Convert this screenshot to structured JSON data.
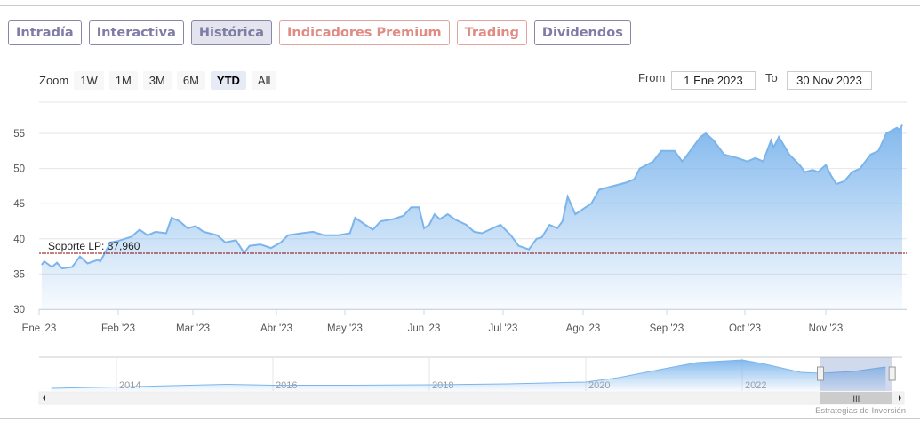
{
  "tabs": [
    {
      "label": "Intradía",
      "style": "normal"
    },
    {
      "label": "Interactiva",
      "style": "normal"
    },
    {
      "label": "Histórica",
      "style": "active"
    },
    {
      "label": "Indicadores Premium",
      "style": "red"
    },
    {
      "label": "Trading",
      "style": "red"
    },
    {
      "label": "Dividendos",
      "style": "normal"
    }
  ],
  "zoom": {
    "label": "Zoom",
    "buttons": [
      "1W",
      "1M",
      "3M",
      "6M",
      "YTD",
      "All"
    ],
    "selected": "YTD"
  },
  "range": {
    "from_label": "From",
    "from": "1 Ene 2023",
    "to_label": "To",
    "to": "30 Nov 2023"
  },
  "credit": "Estrategias de Inversión",
  "colors": {
    "line": "#7cb5ec",
    "support": "#8b0000",
    "tab_text": "#7f7ca6",
    "tab_red": "#e08b83"
  },
  "chart_data": {
    "type": "area",
    "ylim": [
      30,
      60
    ],
    "yticks": [
      30,
      35,
      40,
      45,
      50,
      55
    ],
    "xticks": [
      {
        "label": "Ene '23",
        "date": "2023-01-01"
      },
      {
        "label": "Feb '23",
        "date": "2023-02-01"
      },
      {
        "label": "Mar '23",
        "date": "2023-03-01"
      },
      {
        "label": "Abr '23",
        "date": "2023-04-01"
      },
      {
        "label": "May '23",
        "date": "2023-05-01"
      },
      {
        "label": "Jun '23",
        "date": "2023-06-01"
      },
      {
        "label": "Jul '23",
        "date": "2023-07-01"
      },
      {
        "label": "Ago '23",
        "date": "2023-08-01"
      },
      {
        "label": "Sep '23",
        "date": "2023-09-01"
      },
      {
        "label": "Oct '23",
        "date": "2023-10-01"
      },
      {
        "label": "Nov '23",
        "date": "2023-11-01"
      }
    ],
    "grid": true,
    "support": {
      "label": "Soporte LP: 37,960",
      "value": 37.96
    },
    "series": [
      {
        "points": [
          [
            "2023-01-02",
            36.3
          ],
          [
            "2023-01-03",
            36.8
          ],
          [
            "2023-01-06",
            36.0
          ],
          [
            "2023-01-08",
            36.6
          ],
          [
            "2023-01-10",
            35.8
          ],
          [
            "2023-01-14",
            36.0
          ],
          [
            "2023-01-17",
            37.5
          ],
          [
            "2023-01-20",
            36.5
          ],
          [
            "2023-01-24",
            37.0
          ],
          [
            "2023-01-25",
            36.8
          ],
          [
            "2023-01-29",
            39.5
          ],
          [
            "2023-02-01",
            39.7
          ],
          [
            "2023-02-06",
            40.3
          ],
          [
            "2023-02-09",
            41.3
          ],
          [
            "2023-02-12",
            40.5
          ],
          [
            "2023-02-15",
            41.0
          ],
          [
            "2023-02-19",
            40.8
          ],
          [
            "2023-02-21",
            43.0
          ],
          [
            "2023-02-24",
            42.5
          ],
          [
            "2023-02-27",
            41.5
          ],
          [
            "2023-03-02",
            41.8
          ],
          [
            "2023-03-05",
            41.0
          ],
          [
            "2023-03-10",
            40.5
          ],
          [
            "2023-03-13",
            39.5
          ],
          [
            "2023-03-17",
            39.8
          ],
          [
            "2023-03-20",
            38.0
          ],
          [
            "2023-03-22",
            39.0
          ],
          [
            "2023-03-26",
            39.2
          ],
          [
            "2023-03-30",
            38.7
          ],
          [
            "2023-04-03",
            39.5
          ],
          [
            "2023-04-06",
            40.5
          ],
          [
            "2023-04-12",
            40.8
          ],
          [
            "2023-04-17",
            41.0
          ],
          [
            "2023-04-22",
            40.5
          ],
          [
            "2023-04-28",
            40.5
          ],
          [
            "2023-05-03",
            40.8
          ],
          [
            "2023-05-05",
            43.0
          ],
          [
            "2023-05-09",
            42.0
          ],
          [
            "2023-05-12",
            41.3
          ],
          [
            "2023-05-15",
            42.5
          ],
          [
            "2023-05-20",
            42.8
          ],
          [
            "2023-05-24",
            43.3
          ],
          [
            "2023-05-27",
            44.5
          ],
          [
            "2023-05-30",
            44.5
          ],
          [
            "2023-06-01",
            41.5
          ],
          [
            "2023-06-03",
            42.0
          ],
          [
            "2023-06-05",
            43.5
          ],
          [
            "2023-06-07",
            42.8
          ],
          [
            "2023-06-10",
            43.5
          ],
          [
            "2023-06-13",
            42.7
          ],
          [
            "2023-06-17",
            42.0
          ],
          [
            "2023-06-20",
            41.0
          ],
          [
            "2023-06-23",
            40.8
          ],
          [
            "2023-06-27",
            41.5
          ],
          [
            "2023-06-30",
            42.0
          ],
          [
            "2023-07-04",
            40.5
          ],
          [
            "2023-07-07",
            39.0
          ],
          [
            "2023-07-11",
            38.5
          ],
          [
            "2023-07-14",
            40.0
          ],
          [
            "2023-07-16",
            40.2
          ],
          [
            "2023-07-19",
            42.0
          ],
          [
            "2023-07-22",
            41.5
          ],
          [
            "2023-07-24",
            42.5
          ],
          [
            "2023-07-26",
            46.0
          ],
          [
            "2023-07-29",
            43.5
          ],
          [
            "2023-08-02",
            44.5
          ],
          [
            "2023-08-04",
            45.0
          ],
          [
            "2023-08-07",
            47.0
          ],
          [
            "2023-08-12",
            47.5
          ],
          [
            "2023-08-17",
            48.0
          ],
          [
            "2023-08-20",
            48.5
          ],
          [
            "2023-08-22",
            50.0
          ],
          [
            "2023-08-27",
            51.0
          ],
          [
            "2023-08-30",
            52.5
          ],
          [
            "2023-09-04",
            52.5
          ],
          [
            "2023-09-07",
            51.0
          ],
          [
            "2023-09-09",
            52.0
          ],
          [
            "2023-09-14",
            54.5
          ],
          [
            "2023-09-16",
            55.0
          ],
          [
            "2023-09-19",
            54.0
          ],
          [
            "2023-09-23",
            52.0
          ],
          [
            "2023-09-28",
            51.5
          ],
          [
            "2023-10-02",
            51.0
          ],
          [
            "2023-10-05",
            51.5
          ],
          [
            "2023-10-08",
            51.0
          ],
          [
            "2023-10-11",
            54.0
          ],
          [
            "2023-10-12",
            53.0
          ],
          [
            "2023-10-14",
            54.5
          ],
          [
            "2023-10-18",
            52.0
          ],
          [
            "2023-10-22",
            50.5
          ],
          [
            "2023-10-24",
            49.5
          ],
          [
            "2023-10-27",
            49.8
          ],
          [
            "2023-10-29",
            49.5
          ],
          [
            "2023-11-01",
            50.5
          ],
          [
            "2023-11-03",
            49.0
          ],
          [
            "2023-11-05",
            47.8
          ],
          [
            "2023-11-08",
            48.2
          ],
          [
            "2023-11-11",
            49.5
          ],
          [
            "2023-11-14",
            50.0
          ],
          [
            "2023-11-18",
            52.0
          ],
          [
            "2023-11-21",
            52.5
          ],
          [
            "2023-11-24",
            55.0
          ],
          [
            "2023-11-28",
            55.8
          ],
          [
            "2023-11-29",
            55.5
          ],
          [
            "2023-11-30",
            56.2
          ]
        ]
      }
    ],
    "navigator": {
      "xticks": [
        "2014",
        "2016",
        "2018",
        "2020",
        "2022"
      ],
      "points": [
        [
          "2013-03",
          6
        ],
        [
          "2014-01",
          9
        ],
        [
          "2015-06",
          15
        ],
        [
          "2016-01",
          13
        ],
        [
          "2017-01",
          13
        ],
        [
          "2018-01",
          14
        ],
        [
          "2019-01",
          16
        ],
        [
          "2020-01",
          20
        ],
        [
          "2020-06",
          30
        ],
        [
          "2021-01",
          50
        ],
        [
          "2021-06",
          64
        ],
        [
          "2022-01",
          70
        ],
        [
          "2022-04",
          62
        ],
        [
          "2022-10",
          42
        ],
        [
          "2023-01",
          40
        ],
        [
          "2023-06",
          44
        ],
        [
          "2023-11",
          54
        ]
      ],
      "selected_range": [
        "2023-01-01",
        "2023-11-30"
      ]
    }
  }
}
